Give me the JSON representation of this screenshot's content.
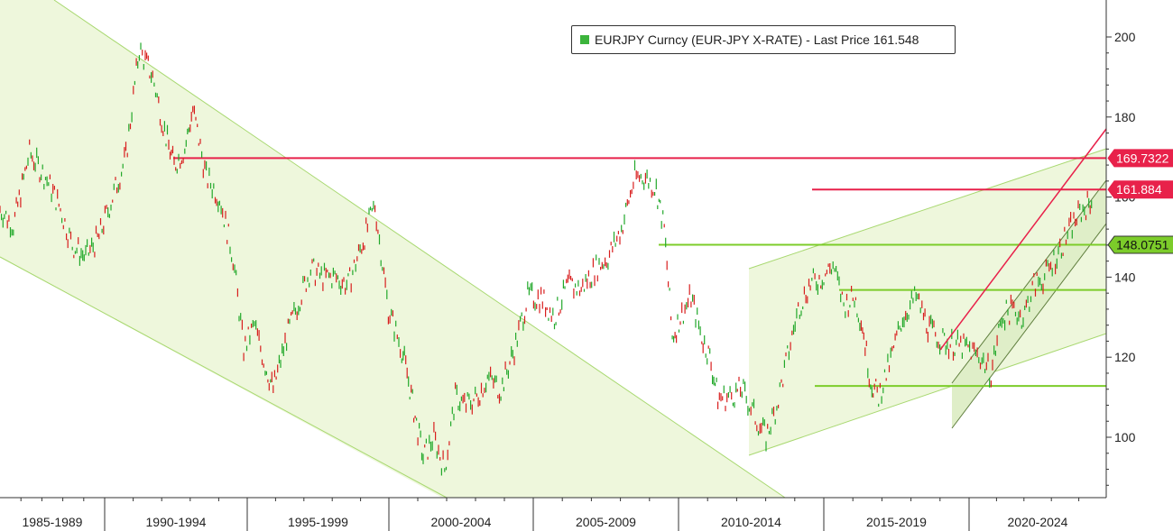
{
  "legend": {
    "label": "EURJPY Curncy (EUR-JPY X-RATE) - Last Price 161.548",
    "color": "#3cb43c"
  },
  "chart_data": {
    "type": "line",
    "series": [
      {
        "name": "EURJPY Curncy (EUR-JPY X-RATE) - Last Price 161.548",
        "x": [
          1983.8,
          1984.3,
          1984.9,
          1985.5,
          1986.0,
          1986.5,
          1987.0,
          1987.5,
          1988.0,
          1988.5,
          1989.0,
          1989.5,
          1990.0,
          1990.3,
          1990.7,
          1991.0,
          1991.5,
          1992.0,
          1992.5,
          1992.9,
          1993.3,
          1993.7,
          1994.0,
          1994.5,
          1995.0,
          1995.4,
          1995.8,
          1996.3,
          1996.8,
          1997.3,
          1997.8,
          1998.3,
          1998.8,
          1999.0,
          1999.3,
          1999.6,
          2000.0,
          2000.4,
          2000.8,
          2001.2,
          2001.6,
          2002.0,
          2002.5,
          2003.0,
          2003.5,
          2004.0,
          2004.5,
          2005.0,
          2005.5,
          2006.0,
          2006.5,
          2007.0,
          2007.5,
          2007.9,
          2008.3,
          2008.6,
          2008.9,
          2009.2,
          2009.6,
          2010.0,
          2010.3,
          2010.6,
          2011.0,
          2011.5,
          2012.0,
          2012.4,
          2012.8,
          2013.2,
          2013.6,
          2014.0,
          2014.5,
          2014.9,
          2015.3,
          2015.7,
          2016.0,
          2016.3,
          2016.6,
          2017.0,
          2017.5,
          2018.0,
          2018.5,
          2019.0,
          2019.5,
          2020.0,
          2020.4,
          2020.8,
          2021.2,
          2021.6,
          2022.0,
          2022.4,
          2022.8,
          2023.2,
          2023.6,
          2024.0,
          2024.4,
          2024.6
        ],
        "values": [
          157,
          153,
          171,
          165,
          158,
          148,
          145,
          150,
          160,
          170,
          197,
          190,
          175,
          168,
          172,
          182,
          165,
          160,
          145,
          122,
          128,
          118,
          112,
          125,
          135,
          142,
          140,
          140,
          138,
          148,
          158,
          132,
          122,
          116,
          105,
          95,
          100,
          92,
          110,
          108,
          110,
          115,
          112,
          122,
          135,
          135,
          130,
          138,
          137,
          142,
          145,
          152,
          165,
          165,
          162,
          152,
          125,
          130,
          135,
          125,
          120,
          110,
          110,
          112,
          105,
          100,
          108,
          120,
          132,
          138,
          140,
          143,
          133,
          135,
          128,
          114,
          110,
          118,
          130,
          135,
          127,
          124,
          123,
          122,
          120,
          116,
          130,
          132,
          130,
          138,
          140,
          145,
          150,
          155,
          158,
          160
        ]
      }
    ],
    "y_ticks": [
      "200",
      "180",
      "160",
      "140",
      "120",
      "100"
    ],
    "x_ticks": [
      "1985-1989",
      "1990-1994",
      "1995-1999",
      "2000-2004",
      "2005-2009",
      "2010-2014",
      "2015-2019",
      "2020-2024"
    ],
    "ylim": [
      85,
      210
    ],
    "xlim": [
      1983.8,
      2025.1
    ],
    "grid": false,
    "legend_position": "top-center",
    "levels": [
      {
        "value": 169.7322,
        "label": "169.7322",
        "color": "#e8214a",
        "labeled": true
      },
      {
        "value": 161.884,
        "label": "161.884",
        "color": "#e8214a",
        "labeled": true
      },
      {
        "value": 148.0751,
        "label": "148.0751",
        "color": "#7ccc2a",
        "labeled": true
      },
      {
        "value": 136.8,
        "label": "",
        "color": "#7ccc2a",
        "labeled": false
      },
      {
        "value": 112.8,
        "label": "",
        "color": "#7ccc2a",
        "labeled": false
      }
    ],
    "colors": {
      "up": "#22a82a",
      "down": "#d81e1e",
      "channel_fill": "#eef7dc",
      "channel_line": "#a8d870",
      "axis": "#333333"
    }
  }
}
